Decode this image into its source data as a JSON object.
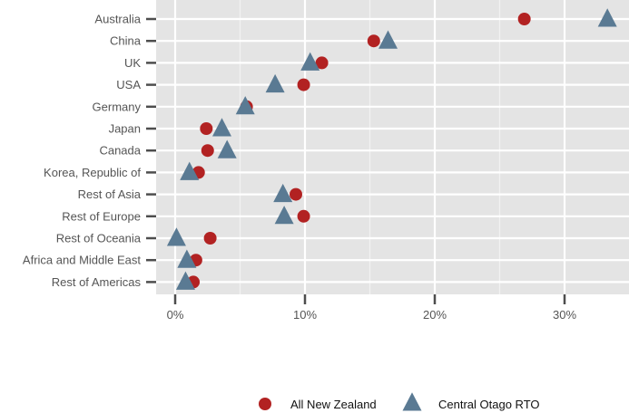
{
  "chart_data": {
    "type": "scatter",
    "title": "",
    "xlabel": "",
    "ylabel": "",
    "categories": [
      "Australia",
      "China",
      "UK",
      "USA",
      "Germany",
      "Japan",
      "Canada",
      "Korea, Republic of",
      "Rest of Asia",
      "Rest of Europe",
      "Rest of Oceania",
      "Africa and Middle East",
      "Rest of Americas"
    ],
    "x_ticks": [
      "0%",
      "10%",
      "20%",
      "30%"
    ],
    "xlim": [
      -0.02,
      0.35
    ],
    "grid": true,
    "legend_position": "bottom",
    "series": [
      {
        "name": "All New Zealand",
        "marker": "circle",
        "color": "#b22222",
        "values": [
          0.269,
          0.153,
          0.113,
          0.099,
          0.055,
          0.024,
          0.025,
          0.018,
          0.093,
          0.099,
          0.027,
          0.016,
          0.014
        ]
      },
      {
        "name": "Central Otago RTO",
        "marker": "triangle",
        "color": "#5a7a93",
        "values": [
          0.333,
          0.164,
          0.104,
          0.077,
          0.054,
          0.036,
          0.04,
          0.011,
          0.083,
          0.084,
          0.001,
          0.009,
          0.008
        ]
      }
    ]
  }
}
